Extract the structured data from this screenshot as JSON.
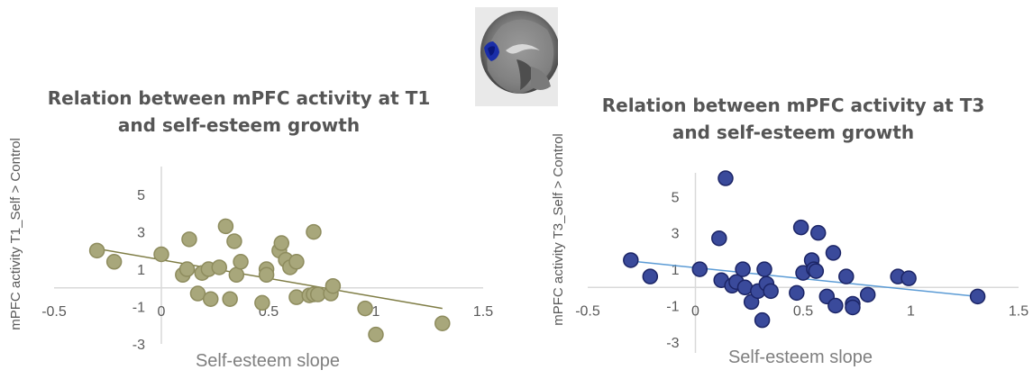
{
  "chart_data": [
    {
      "type": "scatter",
      "title": [
        "Relation between mPFC activity at T1",
        "and self-esteem growth"
      ],
      "xlabel": "Self-esteem slope",
      "ylabel": "mPFC activity T1_Self > Control",
      "xlim": [
        -0.5,
        1.5
      ],
      "ylim": [
        -3,
        6.5
      ],
      "x_ticks": [
        "-0.5",
        "0",
        "0.5",
        "1",
        "1.5"
      ],
      "y_ticks": [
        "5",
        "3",
        "1",
        "-1",
        "-3"
      ],
      "grid": false,
      "colors": {
        "marker": "#a8a77b",
        "marker_edge": "#8e8c5e",
        "trend": "#7f7d45",
        "axis": "#d9d9d9",
        "text": "#595959"
      },
      "trendline": {
        "x1": -0.3,
        "y1": 2.1,
        "x2": 1.31,
        "y2": -1.1
      },
      "points": [
        [
          -0.3,
          2.0
        ],
        [
          -0.22,
          1.4
        ],
        [
          0.0,
          1.8
        ],
        [
          0.1,
          0.7
        ],
        [
          0.12,
          1.0
        ],
        [
          0.13,
          2.6
        ],
        [
          0.17,
          -0.3
        ],
        [
          0.19,
          0.8
        ],
        [
          0.22,
          1.0
        ],
        [
          0.23,
          -0.6
        ],
        [
          0.27,
          1.1
        ],
        [
          0.3,
          3.3
        ],
        [
          0.32,
          -0.6
        ],
        [
          0.34,
          2.5
        ],
        [
          0.35,
          0.7
        ],
        [
          0.37,
          1.4
        ],
        [
          0.47,
          -0.8
        ],
        [
          0.49,
          1.0
        ],
        [
          0.49,
          0.7
        ],
        [
          0.55,
          2.0
        ],
        [
          0.56,
          2.4
        ],
        [
          0.58,
          1.5
        ],
        [
          0.6,
          1.1
        ],
        [
          0.63,
          1.4
        ],
        [
          0.63,
          -0.5
        ],
        [
          0.69,
          -0.4
        ],
        [
          0.71,
          -0.35
        ],
        [
          0.71,
          3.0
        ],
        [
          0.73,
          -0.35
        ],
        [
          0.79,
          -0.3
        ],
        [
          0.8,
          0.1
        ],
        [
          0.95,
          -1.1
        ],
        [
          1.0,
          -2.5
        ],
        [
          1.31,
          -1.9
        ]
      ]
    },
    {
      "type": "scatter",
      "title": [
        "Relation between mPFC activity at T3",
        "and self-esteem growth"
      ],
      "xlabel": "Self-esteem slope",
      "ylabel": "mPFC activity T3_Self > Control",
      "xlim": [
        -0.5,
        1.5
      ],
      "ylim": [
        -3.6,
        6.3
      ],
      "x_ticks": [
        "-0.5",
        "0",
        "0.5",
        "1",
        "1.5"
      ],
      "y_ticks": [
        "5",
        "3",
        "1",
        "-1",
        "-3"
      ],
      "grid": false,
      "colors": {
        "marker": "#3a4a9b",
        "marker_edge": "#1c2566",
        "trend": "#5b9bd5",
        "axis": "#d9d9d9",
        "text": "#595959"
      },
      "trendline": {
        "x1": -0.3,
        "y1": 1.45,
        "x2": 1.31,
        "y2": -0.5
      },
      "points": [
        [
          -0.3,
          1.5
        ],
        [
          -0.21,
          0.6
        ],
        [
          0.02,
          1.0
        ],
        [
          0.11,
          2.7
        ],
        [
          0.12,
          0.4
        ],
        [
          0.14,
          6.0
        ],
        [
          0.17,
          0.1
        ],
        [
          0.19,
          0.3
        ],
        [
          0.22,
          1.0
        ],
        [
          0.23,
          0.0
        ],
        [
          0.26,
          -0.8
        ],
        [
          0.29,
          -0.2
        ],
        [
          0.31,
          -1.8
        ],
        [
          0.32,
          1.0
        ],
        [
          0.33,
          0.2
        ],
        [
          0.35,
          -0.2
        ],
        [
          0.47,
          -0.3
        ],
        [
          0.49,
          3.3
        ],
        [
          0.5,
          0.8
        ],
        [
          0.54,
          1.5
        ],
        [
          0.55,
          1.0
        ],
        [
          0.56,
          0.9
        ],
        [
          0.57,
          3.0
        ],
        [
          0.61,
          -0.5
        ],
        [
          0.64,
          1.9
        ],
        [
          0.65,
          -1.0
        ],
        [
          0.7,
          0.6
        ],
        [
          0.73,
          -0.9
        ],
        [
          0.73,
          -1.1
        ],
        [
          0.8,
          -0.4
        ],
        [
          0.94,
          0.6
        ],
        [
          0.99,
          0.5
        ],
        [
          1.31,
          -0.5
        ]
      ]
    }
  ]
}
